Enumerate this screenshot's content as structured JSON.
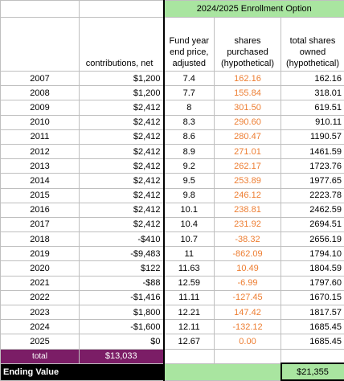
{
  "banner": {
    "title": "2024/2025 Enrollment Option"
  },
  "headers": {
    "contributions": "contributions, net",
    "price": [
      "Fund year",
      "end price,",
      "adjusted"
    ],
    "shares": [
      "shares",
      "purchased",
      "(hypothetical)"
    ],
    "owned": [
      "total shares",
      "owned",
      "(hypothetical)"
    ]
  },
  "rows": [
    {
      "year": "2007",
      "contrib": "$1,200",
      "price": "7.4",
      "shares": "162.16",
      "owned": "162.16"
    },
    {
      "year": "2008",
      "contrib": "$1,200",
      "price": "7.7",
      "shares": "155.84",
      "owned": "318.01"
    },
    {
      "year": "2009",
      "contrib": "$2,412",
      "price": "8",
      "shares": "301.50",
      "owned": "619.51"
    },
    {
      "year": "2010",
      "contrib": "$2,412",
      "price": "8.3",
      "shares": "290.60",
      "owned": "910.11"
    },
    {
      "year": "2011",
      "contrib": "$2,412",
      "price": "8.6",
      "shares": "280.47",
      "owned": "1190.57"
    },
    {
      "year": "2012",
      "contrib": "$2,412",
      "price": "8.9",
      "shares": "271.01",
      "owned": "1461.59"
    },
    {
      "year": "2013",
      "contrib": "$2,412",
      "price": "9.2",
      "shares": "262.17",
      "owned": "1723.76"
    },
    {
      "year": "2014",
      "contrib": "$2,412",
      "price": "9.5",
      "shares": "253.89",
      "owned": "1977.65"
    },
    {
      "year": "2015",
      "contrib": "$2,412",
      "price": "9.8",
      "shares": "246.12",
      "owned": "2223.78"
    },
    {
      "year": "2016",
      "contrib": "$2,412",
      "price": "10.1",
      "shares": "238.81",
      "owned": "2462.59"
    },
    {
      "year": "2017",
      "contrib": "$2,412",
      "price": "10.4",
      "shares": "231.92",
      "owned": "2694.51"
    },
    {
      "year": "2018",
      "contrib": "-$410",
      "price": "10.7",
      "shares": "-38.32",
      "owned": "2656.19"
    },
    {
      "year": "2019",
      "contrib": "-$9,483",
      "price": "11",
      "shares": "-862.09",
      "owned": "1794.10"
    },
    {
      "year": "2020",
      "contrib": "$122",
      "price": "11.63",
      "shares": "10.49",
      "owned": "1804.59"
    },
    {
      "year": "2021",
      "contrib": "-$88",
      "price": "12.59",
      "shares": "-6.99",
      "owned": "1797.60"
    },
    {
      "year": "2022",
      "contrib": "-$1,416",
      "price": "11.11",
      "shares": "-127.45",
      "owned": "1670.15"
    },
    {
      "year": "2023",
      "contrib": "$1,800",
      "price": "12.21",
      "shares": "147.42",
      "owned": "1817.57"
    },
    {
      "year": "2024",
      "contrib": "-$1,600",
      "price": "12.11",
      "shares": "-132.12",
      "owned": "1685.45"
    },
    {
      "year": "2025",
      "contrib": "$0",
      "price": "12.67",
      "shares": "0.00",
      "owned": "1685.45"
    }
  ],
  "total": {
    "label": "total",
    "value": "$13,033"
  },
  "ending": {
    "label": "Ending Value",
    "value": "$21,355"
  },
  "colors": {
    "accent_orange": "#ed7d31",
    "banner_green": "#a9e5a0",
    "total_purple": "#7b1d66"
  }
}
